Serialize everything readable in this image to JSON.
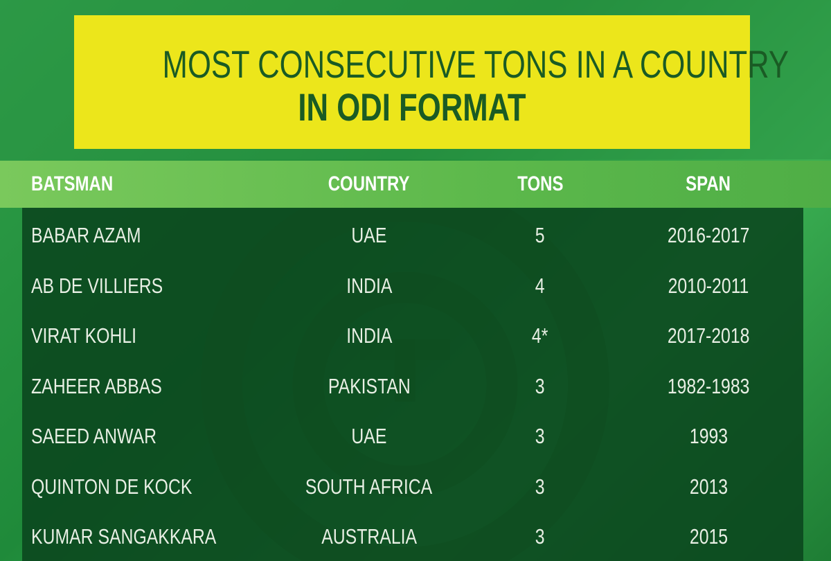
{
  "header": {
    "title_line1": "MOST CONSECUTIVE TONS IN A COUNTRY",
    "title_line2": "IN ODI FORMAT"
  },
  "table": {
    "columns": [
      "BATSMAN",
      "COUNTRY",
      "TONS",
      "SPAN"
    ],
    "rows": [
      [
        "BABAR AZAM",
        "UAE",
        5,
        "2016-2017"
      ],
      [
        "AB DE VILLIERS",
        "INDIA",
        4,
        "2010-2011"
      ],
      [
        "VIRAT KOHLI",
        "INDIA",
        "4*",
        "2017-2018"
      ],
      [
        "ZAHEER ABBAS",
        "PAKISTAN",
        3,
        "1982-1983"
      ],
      [
        "SAEED ANWAR",
        "UAE",
        3,
        "1993"
      ],
      [
        "QUINTON DE KOCK",
        "SOUTH AFRICA",
        3,
        "2013"
      ],
      [
        "KUMAR SANGAKKARA",
        "AUSTRALIA",
        3,
        "2015"
      ]
    ]
  }
}
